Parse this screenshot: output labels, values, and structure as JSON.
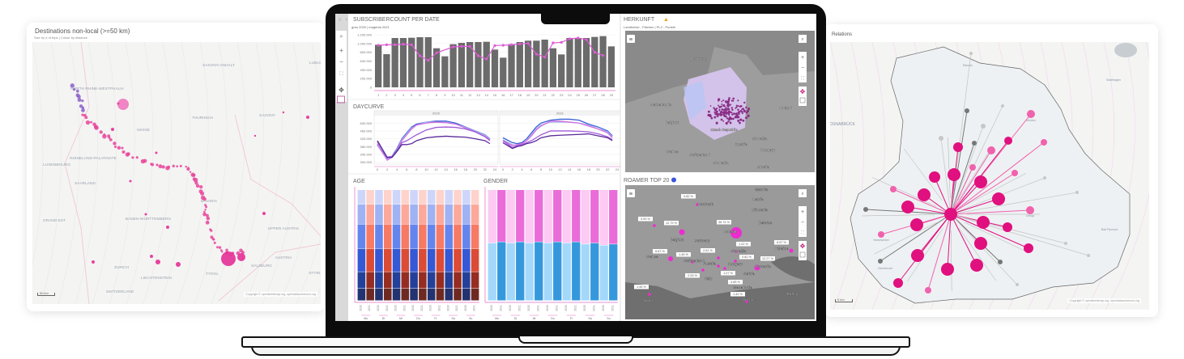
{
  "left_card": {
    "title": "Destinations non-local (>=50 km)",
    "subtitle": "Size by # of trips | Colour by distance",
    "map_labels": [
      "SAXONY-ANHALT",
      "THURINGIA",
      "HESSE",
      "RHINELAND-PALATINATE",
      "SAARLAND",
      "LUXEMBOURG",
      "BADEN-WÜRTTEMBERG",
      "BAVARIA",
      "SAXONY",
      "GRAND EST",
      "UPPER AUSTRIA",
      "AUSTRIA",
      "SALZBURG",
      "TYROL",
      "LIECHTENSTEIN",
      "SWITZERLAND",
      "ZURICH",
      "STYRIA",
      "LUBUS",
      "NORTH RHINE-WESTPHALIA"
    ],
    "scale": "50 km",
    "copyright": "Copyright © openstreetmap.org, opendatacommons.org"
  },
  "right_card": {
    "title": "Relations",
    "map_labels": [
      "OSNABRÜCK",
      "Minden",
      "Lemgo",
      "Harsewinkel",
      "Herzebrock",
      "Bad Pyrmont",
      "Stadthagen",
      "Rahden"
    ],
    "scale": "5 km",
    "copyright": "Copyright © openstreetmap.org, opendatacommons.org"
  },
  "dashboard": {
    "subscriber": {
      "title": "SUBSCRIBERCOUNT PER DATE",
      "legend": "grau 2020 | magenta 2021"
    },
    "daycurve": {
      "title": "DAYCURVE"
    },
    "age": {
      "title": "AGE"
    },
    "gender": {
      "title": "GENDER"
    },
    "herkunft": {
      "title": "HERKUNFT",
      "subtitle": "Landkreise - Flächen | PLZ - Punkte",
      "map_labels": [
        "Denmark",
        "Netherlands",
        "Poland",
        "Belgium",
        "Czech Republic",
        "Slovakia",
        "Austria",
        "Hungary",
        "France",
        "Switzerland",
        "Slovenia",
        "Croatia"
      ]
    },
    "roamer": {
      "title": "ROAMER TOP 20",
      "map_labels": [
        "Estonia",
        "Latvia",
        "Lithuania",
        "Denmark",
        "Belarus",
        "Belgium",
        "Germany",
        "Poland",
        "France",
        "Switzerland",
        "Austria",
        "Slovakia",
        "Hungary",
        "Ukraine",
        "Romania",
        "Italy",
        "Serbia",
        "Macedonia",
        "Greece",
        "Spain",
        "Turkey"
      ],
      "labels": [
        "0.82 %",
        "0.59 %",
        "12.79 %",
        "36.74 %",
        "1.22 %",
        "6.57 %",
        "6.87 %",
        "1.45 %",
        "2.61 %",
        "0.82 %",
        "12.27 %",
        "2.05 %",
        "1.07 %",
        "0.85 %",
        "1.46 %",
        "1.42 %"
      ]
    }
  },
  "colors": {
    "magenta": "#e0189a",
    "pink": "#e35bb5",
    "gray_bar": "#6b6b6b",
    "line": "#de5cd6"
  },
  "chart_data": [
    {
      "type": "bar",
      "title": "SUBSCRIBERCOUNT PER DATE",
      "categories": [
        "1",
        "2",
        "3",
        "4",
        "5",
        "6",
        "7",
        "8",
        "9",
        "10",
        "11",
        "12",
        "13",
        "14",
        "15",
        "16",
        "17",
        "18",
        "19",
        "20",
        "21",
        "22",
        "23",
        "24",
        "25",
        "26",
        "27",
        "28",
        "29"
      ],
      "yticks": [
        "0",
        "200.000",
        "400.000",
        "600.000",
        "800.000",
        "1.000.000",
        "1.200.000"
      ],
      "ylim": [
        0,
        1200000
      ],
      "series": [
        {
          "name": "2020",
          "type": "bar",
          "values": [
            972000,
            757000,
            1126000,
            1126000,
            1132000,
            1145000,
            1145000,
            892000,
            708000,
            985000,
            1015000,
            1034000,
            1034000,
            1040000,
            862000,
            677000,
            985000,
            1034000,
            1065000,
            1065000,
            1089000,
            892000,
            751000,
            1126000,
            1126000,
            1126000,
            1151000,
            1169000,
            935000
          ]
        },
        {
          "name": "2021",
          "type": "line",
          "values": [
            960000,
            972000,
            972000,
            985000,
            972000,
            720000,
            615000,
            788000,
            null,
            923000,
            935000,
            935000,
            720000,
            646000,
            954000,
            960000,
            972000,
            991000,
            1003000,
            757000,
            689000,
            1015000,
            1028000,
            1108000,
            1126000,
            1089000,
            800000,
            726000,
            null
          ]
        }
      ]
    },
    {
      "type": "line",
      "title": "DAYCURVE",
      "facets": [
        "2020",
        "2021"
      ],
      "x": [
        0,
        2,
        3,
        4,
        5,
        6,
        7,
        8,
        10,
        12,
        14,
        16,
        18,
        20,
        22,
        23
      ],
      "xticks": [
        "0",
        "2",
        "4",
        "6",
        "8",
        "10",
        "12",
        "14",
        "16",
        "18",
        "20",
        "22",
        "24"
      ],
      "yticks": [
        "300.000",
        "340.000",
        "380.000",
        "420.000",
        "460.000",
        "500.000"
      ],
      "ylim": [
        290000,
        530000
      ],
      "series_colors": [
        "#3a5fd6",
        "#a9b8f0",
        "#d070e0",
        "#a05ad8",
        "#5a2a9a"
      ],
      "series": {
        "2020": [
          [
            390,
            320,
            330,
            370,
            420,
            450,
            480,
            495,
            505,
            510,
            510,
            500,
            480,
            460,
            440,
            420
          ],
          [
            385,
            315,
            325,
            365,
            415,
            445,
            475,
            490,
            505,
            505,
            505,
            495,
            478,
            458,
            438,
            418
          ],
          [
            395,
            310,
            325,
            360,
            410,
            440,
            470,
            490,
            500,
            505,
            502,
            495,
            475,
            455,
            432,
            415
          ],
          [
            405,
            325,
            330,
            360,
            400,
            410,
            425,
            440,
            465,
            478,
            480,
            478,
            470,
            455,
            430,
            410
          ],
          [
            410,
            325,
            325,
            355,
            390,
            390,
            395,
            410,
            425,
            430,
            433,
            430,
            428,
            420,
            410,
            395
          ]
        ],
        "2021": [
          [
            425,
            400,
            395,
            400,
            420,
            450,
            480,
            500,
            515,
            520,
            520,
            515,
            495,
            480,
            460,
            435
          ],
          [
            415,
            390,
            385,
            395,
            410,
            440,
            470,
            490,
            505,
            505,
            505,
            500,
            490,
            470,
            455,
            430
          ],
          [
            410,
            385,
            390,
            395,
            410,
            435,
            465,
            485,
            510,
            510,
            505,
            500,
            485,
            470,
            450,
            425
          ],
          [
            410,
            375,
            385,
            390,
            400,
            410,
            425,
            440,
            460,
            460,
            460,
            458,
            455,
            445,
            430,
            415
          ],
          [
            400,
            370,
            380,
            385,
            395,
            400,
            410,
            425,
            435,
            438,
            440,
            442,
            445,
            435,
            425,
            410
          ]
        ]
      },
      "unit_scale": 1000
    },
    {
      "type": "bar",
      "title": "AGE",
      "stacked": "percent",
      "days": [
        "Mo",
        "Di",
        "Mi",
        "Do",
        "Fr",
        "Sa",
        "So"
      ],
      "years": [
        "2020",
        "2021"
      ],
      "segments_bottom_to_top": [
        0.11,
        0.15,
        0.21,
        0.22,
        0.18,
        0.13
      ],
      "colors_2020": [
        "#233270",
        "#23409a",
        "#3558d6",
        "#6585ee",
        "#9fb2f4",
        "#cdd6fa"
      ],
      "colors_2021": [
        "#6e2a22",
        "#962d22",
        "#db4b35",
        "#f77a65",
        "#fca89a",
        "#fed3cb"
      ]
    },
    {
      "type": "bar",
      "title": "GENDER",
      "stacked": "percent",
      "days": [
        "Mo",
        "Di",
        "Mi",
        "Do",
        "Fr",
        "Sa",
        "So"
      ],
      "years": [
        "2020",
        "2021"
      ],
      "male_share": [
        0.52,
        0.53,
        0.52,
        0.53,
        0.52,
        0.53,
        0.52,
        0.53,
        0.52,
        0.53,
        0.51,
        0.52,
        0.5,
        0.51
      ],
      "colors_2020": [
        "#a3d8fb",
        "#fccaf3"
      ],
      "colors_2021": [
        "#3598dc",
        "#ea6cd9"
      ]
    }
  ]
}
